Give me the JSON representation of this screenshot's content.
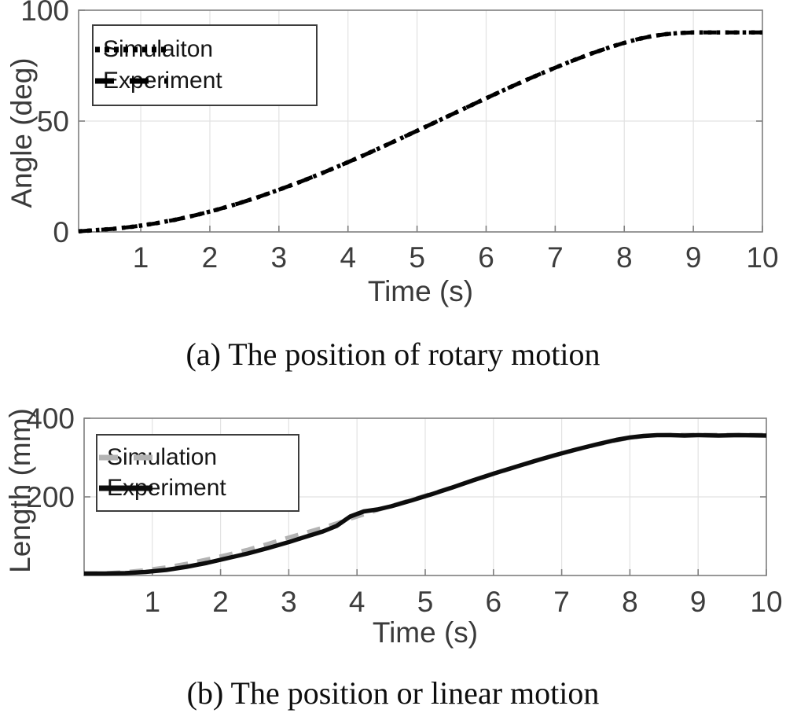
{
  "figure": {
    "caption_a": "(a) The position of rotary motion",
    "caption_b": "(b) The position or linear motion"
  },
  "chart_data": [
    {
      "id": "rotary-position",
      "type": "line",
      "title": "",
      "xlabel": "Time (s)",
      "ylabel": "Angle (deg)",
      "xlim": [
        0.1,
        10
      ],
      "ylim": [
        0,
        100
      ],
      "xticks": [
        1,
        2,
        3,
        4,
        5,
        6,
        7,
        8,
        9,
        10
      ],
      "yticks": [
        0,
        50,
        100
      ],
      "ygrid": [
        50
      ],
      "grid": true,
      "legend_position": "upper-left",
      "axis_color": "#7f7f7f",
      "grid_color": "#e2e2e2",
      "tick_text_color": "#3d3d3d",
      "x": [
        0.1,
        0.3,
        0.6,
        0.9,
        1.2,
        1.5,
        1.8,
        2.1,
        2.4,
        2.7,
        3,
        3.3,
        3.6,
        3.9,
        4.2,
        4.5,
        4.8,
        5.1,
        5.4,
        5.7,
        6,
        6.3,
        6.6,
        6.9,
        7.2,
        7.5,
        7.8,
        8,
        8.2,
        8.4,
        8.6,
        8.8,
        9,
        9.3,
        9.6,
        10
      ],
      "series": [
        {
          "name": "Simulaiton",
          "style": "dotted",
          "color": "#000000",
          "values": [
            0.3,
            0.7,
            1.4,
            2.4,
            3.8,
            5.5,
            7.6,
            10,
            12.7,
            15.7,
            19,
            22.5,
            26.2,
            30.1,
            34.2,
            38.4,
            42.7,
            47.1,
            51.5,
            55.9,
            60.3,
            64.6,
            68.8,
            72.8,
            76.6,
            80.2,
            83.4,
            85.3,
            87,
            88.3,
            89.2,
            89.7,
            90,
            90,
            90,
            90
          ]
        },
        {
          "name": "Experiment",
          "style": "dashed",
          "color": "#000000",
          "values": [
            0.3,
            0.7,
            1.4,
            2.4,
            3.8,
            5.5,
            7.6,
            10,
            12.7,
            15.7,
            19,
            22.5,
            26.2,
            30.1,
            34.2,
            38.4,
            42.7,
            47.1,
            51.5,
            55.9,
            60.3,
            64.6,
            68.8,
            72.8,
            76.6,
            80.2,
            83.4,
            85.3,
            87,
            88.3,
            89.2,
            89.7,
            90,
            90,
            90,
            90
          ]
        }
      ]
    },
    {
      "id": "linear-position",
      "type": "line",
      "title": "",
      "xlabel": "Time (s)",
      "ylabel": "Length (mm)",
      "xlim": [
        0,
        10
      ],
      "ylim": [
        0,
        400
      ],
      "xticks": [
        1,
        2,
        3,
        4,
        5,
        6,
        7,
        8,
        9,
        10
      ],
      "yticks": [
        200,
        400
      ],
      "ygrid": [
        200
      ],
      "grid": true,
      "legend_position": "upper-left",
      "axis_color": "#7f7f7f",
      "grid_color": "#e2e2e2",
      "tick_text_color": "#3d3d3d",
      "x": [
        0,
        0.3,
        0.6,
        0.9,
        1.2,
        1.5,
        1.8,
        2.1,
        2.4,
        2.7,
        3,
        3.2,
        3.5,
        3.7,
        3.9,
        4.1,
        4.3,
        4.5,
        4.8,
        5.1,
        5.4,
        5.7,
        6,
        6.3,
        6.6,
        6.9,
        7.2,
        7.5,
        7.8,
        8,
        8.2,
        8.4,
        8.6,
        8.8,
        9,
        9.3,
        9.6,
        10
      ],
      "series": [
        {
          "name": "Simulation",
          "style": "dashed",
          "color": "#b3b3b3",
          "values": [
            5,
            6,
            9,
            14,
            21,
            30,
            41,
            53,
            66,
            81,
            97,
            107,
            122,
            133,
            144,
            155,
            166,
            177,
            193,
            209,
            225,
            241,
            258,
            274,
            290,
            305,
            319,
            332,
            343,
            350,
            354,
            357,
            358,
            358,
            358,
            358,
            358,
            358
          ]
        },
        {
          "name": "Experiment",
          "style": "solid",
          "color": "#0d0d0d",
          "values": [
            5,
            5,
            6,
            9,
            14,
            22,
            32,
            44,
            56,
            70,
            85,
            96,
            112,
            126,
            150,
            163,
            168,
            176,
            191,
            207,
            224,
            242,
            259,
            275,
            291,
            306,
            320,
            333,
            345,
            351,
            355,
            357,
            357,
            356,
            357,
            356,
            357,
            356
          ]
        }
      ]
    }
  ]
}
